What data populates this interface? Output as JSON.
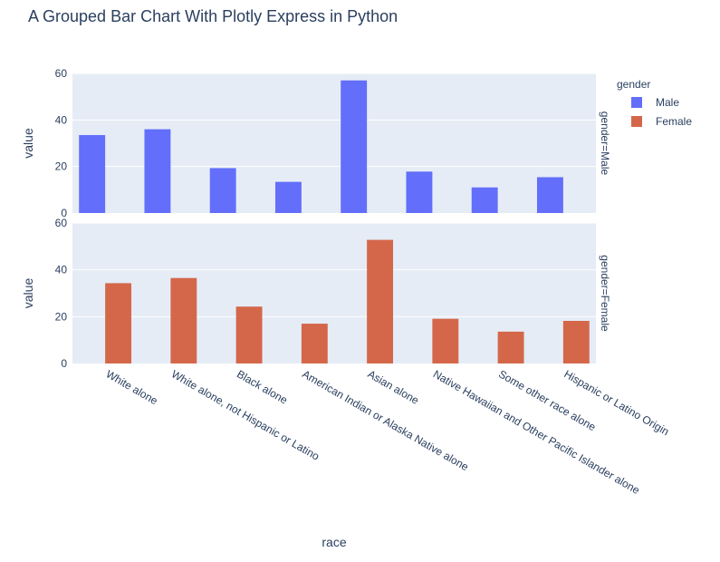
{
  "chart_data": {
    "type": "bar",
    "title": "A Grouped Bar Chart With Plotly Express in Python",
    "xlabel": "race",
    "ylabel": "value",
    "categories": [
      "White alone",
      "White alone, not Hispanic or Latino",
      "Black alone",
      "American Indian or Alaska Native alone",
      "Asian alone",
      "Native Hawaiian and Other Pacific Islander alone",
      "Some other race alone",
      "Hispanic or Latino Origin"
    ],
    "series": [
      {
        "name": "Male",
        "color": "#636efa",
        "values": [
          33.5,
          36,
          19.3,
          13.4,
          57,
          17.8,
          11,
          15.4
        ]
      },
      {
        "name": "Female",
        "color": "#d4674a",
        "values": [
          34.3,
          36.5,
          24.3,
          17,
          52.8,
          19.1,
          13.6,
          18.2
        ]
      }
    ],
    "facets": [
      {
        "label": "gender=Male",
        "series_index": 0
      },
      {
        "label": "gender=Female",
        "series_index": 1
      }
    ],
    "ylim": [
      0,
      60
    ],
    "yticks": [
      0,
      20,
      40,
      60
    ],
    "legend": {
      "title": "gender",
      "placement": "top-right"
    },
    "grid": true,
    "plot_background": "#e5ecf6"
  }
}
